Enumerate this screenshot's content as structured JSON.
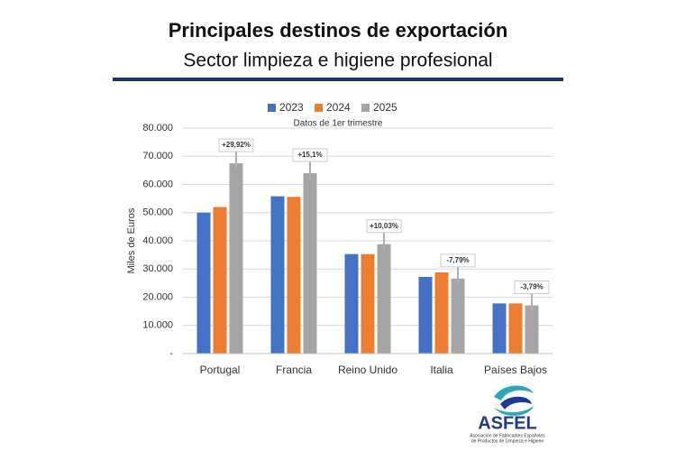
{
  "chart_data": {
    "type": "bar",
    "title": "Principales destinos de exportación",
    "subtitle": "Sector limpieza e higiene profesional",
    "note": "Datos de 1er trimestre",
    "y_label": "Miles de Euros",
    "categories": [
      "Portugal",
      "Francia",
      "Reino Unido",
      "Italia",
      "Países Bajos"
    ],
    "series": [
      {
        "name": "2023",
        "color": "#4472c4",
        "values": [
          50000,
          55800,
          35300,
          27200,
          17800
        ]
      },
      {
        "name": "2024",
        "color": "#ed7d31",
        "values": [
          52000,
          55600,
          35300,
          28800,
          17800
        ]
      },
      {
        "name": "2025",
        "color": "#a5a5a5",
        "values": [
          67500,
          64000,
          38800,
          26600,
          17100
        ]
      }
    ],
    "annotations": [
      "+29,92%",
      "+15,1%",
      "+10,03%",
      "-7,79%",
      "-3,79%"
    ],
    "ylim": [
      0,
      80000
    ],
    "yticks": [
      {
        "value": 0,
        "label": "-"
      },
      {
        "value": 10000,
        "label": "10.000"
      },
      {
        "value": 20000,
        "label": "20.000"
      },
      {
        "value": 30000,
        "label": "30.000"
      },
      {
        "value": 40000,
        "label": "40.000"
      },
      {
        "value": 50000,
        "label": "50.000"
      },
      {
        "value": 60000,
        "label": "60.000"
      },
      {
        "value": 70000,
        "label": "70.000"
      },
      {
        "value": 80000,
        "label": "80.000"
      }
    ],
    "grid": true
  },
  "logo": {
    "name": "ASFEL",
    "tagline_1": "Asociación de Fabricantes Españoles",
    "tagline_2": "de Productos de Limpieza e Higiene"
  }
}
